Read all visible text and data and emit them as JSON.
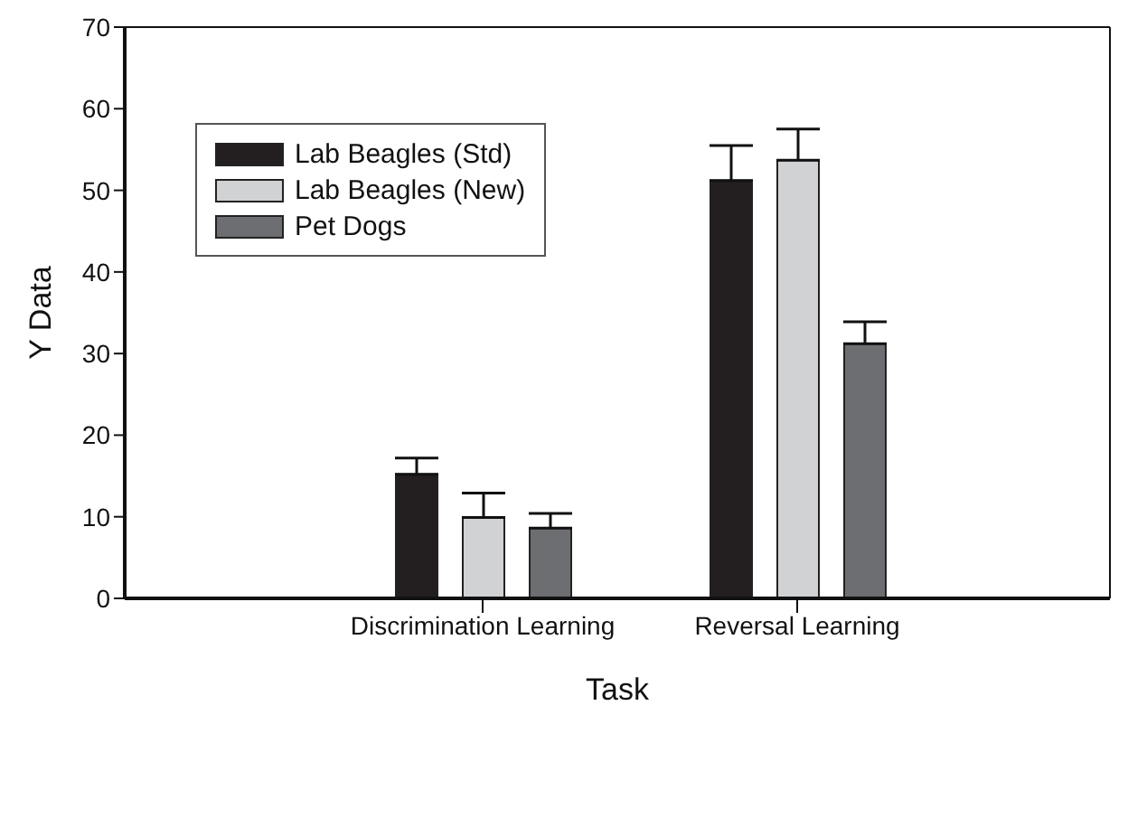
{
  "chart_data": {
    "type": "bar",
    "xlabel": "Task",
    "ylabel": "Y Data",
    "categories": [
      "Discrimination Learning",
      "Reversal Learning"
    ],
    "series": [
      {
        "name": "Lab Beagles (Std)",
        "color": "#231f20",
        "values": [
          15.2,
          51.2
        ],
        "errors": [
          [
            15.2,
            17.2
          ],
          [
            51.2,
            55.5
          ]
        ]
      },
      {
        "name": "Lab Beagles (New)",
        "color": "#d1d2d4",
        "values": [
          9.9,
          53.7
        ],
        "errors": [
          [
            9.9,
            12.9
          ],
          [
            53.7,
            57.5
          ]
        ]
      },
      {
        "name": "Pet Dogs",
        "color": "#6d6e71",
        "values": [
          8.6,
          31.2
        ],
        "errors": [
          [
            8.6,
            10.4
          ],
          [
            31.2,
            33.9
          ]
        ]
      }
    ],
    "ylim": [
      0,
      70
    ],
    "yticks": [
      0,
      10,
      20,
      30,
      40,
      50,
      60,
      70
    ],
    "grid": false,
    "legend": "top left"
  }
}
